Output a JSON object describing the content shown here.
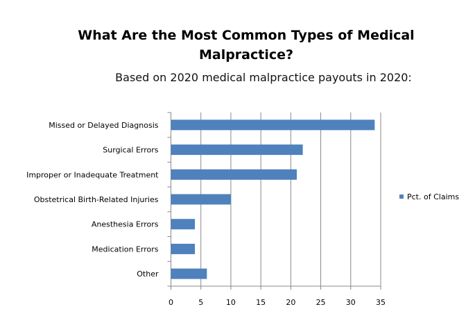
{
  "chart_data": {
    "type": "bar",
    "orientation": "horizontal",
    "title": "What Are the Most Common Types of Medical Malpractice?",
    "title_lines": [
      "What Are the Most Common Types of Medical",
      "Malpractice?"
    ],
    "subtitle": "Based on 2020 medical malpractice payouts in 2020:",
    "categories": [
      "Missed or Delayed Diagnosis",
      "Surgical Errors",
      "Improper or Inadequate Treatment",
      "Obstetrical Birth-Related Injuries",
      "Anesthesia Errors",
      "Medication Errors",
      "Other"
    ],
    "series": [
      {
        "name": "Pct. of Claims",
        "values": [
          34,
          22,
          21,
          10,
          4,
          4,
          6
        ],
        "color": "#4f81bd"
      }
    ],
    "xlim": [
      0,
      35
    ],
    "xticks": [
      "0",
      "5",
      "10",
      "15",
      "20",
      "25",
      "30",
      "35"
    ],
    "grid": true,
    "legend": "right"
  }
}
